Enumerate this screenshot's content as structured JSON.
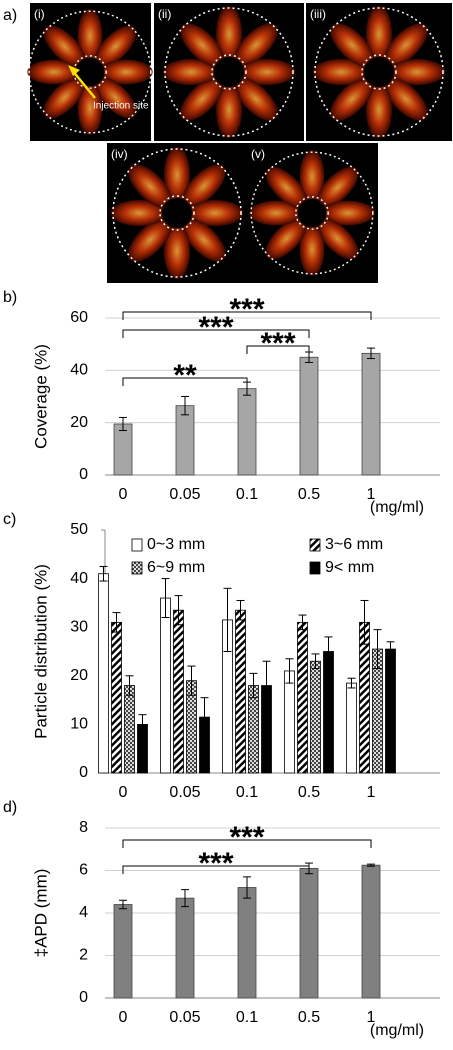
{
  "images": {
    "label": "a)",
    "annotation": "Injection site",
    "panels": [
      "(i)",
      "(ii)",
      "(iii)",
      "(iv)",
      "(v)"
    ]
  },
  "chart_data": [
    {
      "type": "bar",
      "label": "b)",
      "ylabel": "Coverage (%)",
      "xlabel": "(mg/ml)",
      "categories": [
        "0",
        "0.05",
        "0.1",
        "0.5",
        "1"
      ],
      "values": [
        19.5,
        26.5,
        33,
        45,
        46.5
      ],
      "errors": [
        2.5,
        3.5,
        2.5,
        2,
        2
      ],
      "color": "#a6a6a6",
      "ylim": [
        0,
        60
      ],
      "yticks": [
        0,
        20,
        40,
        60
      ],
      "grid": true,
      "annotations": [
        {
          "text": "**",
          "from": "0",
          "to": "0.1"
        },
        {
          "text": "***",
          "from": "0.1",
          "to": "0.5"
        },
        {
          "text": "***",
          "from": "0",
          "to": "0.5"
        },
        {
          "text": "***",
          "from": "0",
          "to": "1"
        }
      ]
    },
    {
      "type": "bar",
      "label": "c)",
      "ylabel": "Particle distribution (%)",
      "categories": [
        "0",
        "0.05",
        "0.1",
        "0.5",
        "1"
      ],
      "series": [
        {
          "name": "0~3 mm",
          "color": "#ffffff",
          "pattern": "none",
          "values": [
            41,
            36,
            31.5,
            21,
            18.5
          ],
          "errors": [
            1.5,
            4,
            6.5,
            2.5,
            1
          ]
        },
        {
          "name": "3~6 mm",
          "color": "#000000",
          "pattern": "diagonal",
          "values": [
            31,
            33.5,
            33.5,
            31,
            31
          ],
          "errors": [
            2,
            3,
            2,
            1.5,
            4.5
          ]
        },
        {
          "name": "6~9 mm",
          "color": "#555555",
          "pattern": "checker",
          "values": [
            18,
            19,
            18,
            23,
            25.5
          ],
          "errors": [
            2,
            3,
            2.5,
            1.5,
            4
          ]
        },
        {
          "name": "9< mm",
          "color": "#000000",
          "pattern": "none",
          "values": [
            10,
            11.5,
            18,
            25,
            25.5
          ],
          "errors": [
            2,
            4,
            5,
            3,
            1.5
          ]
        }
      ],
      "ylim": [
        0,
        50
      ],
      "yticks": [
        0,
        10,
        20,
        30,
        40,
        50
      ],
      "grid": false
    },
    {
      "type": "bar",
      "label": "d)",
      "ylabel": "‡APD (mm)",
      "xlabel": "(mg/ml)",
      "categories": [
        "0",
        "0.05",
        "0.1",
        "0.5",
        "1"
      ],
      "values": [
        4.4,
        4.7,
        5.2,
        6.1,
        6.25
      ],
      "errors": [
        0.2,
        0.4,
        0.5,
        0.25,
        0.05
      ],
      "color": "#808080",
      "ylim": [
        0,
        8
      ],
      "yticks": [
        0,
        2,
        4,
        6,
        8
      ],
      "grid": true,
      "annotations": [
        {
          "text": "***",
          "from": "0",
          "to": "0.5"
        },
        {
          "text": "***",
          "from": "0",
          "to": "1"
        }
      ]
    }
  ]
}
